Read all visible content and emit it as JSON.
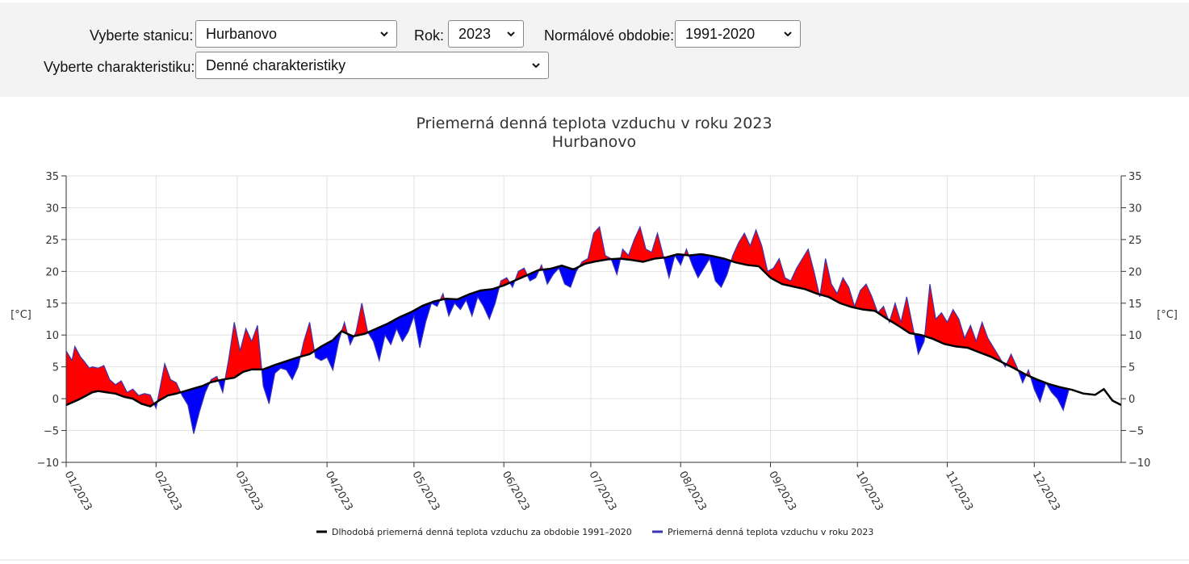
{
  "form": {
    "station_label": "Vyberte stanicu:",
    "station_value": "Hurbanovo",
    "year_label": "Rok:",
    "year_value": "2023",
    "normal_label": "Normálové obdobie:",
    "normal_value": "1991-2020",
    "char_label": "Vyberte charakteristiku:",
    "char_value": "Denné charakteristiky"
  },
  "colors": {
    "above": "#ff0000",
    "below": "#0000ff",
    "normal_line": "#000000",
    "year_line": "#3a35b0"
  },
  "chart_data": {
    "type": "area",
    "title": "Priemerná denná teplota vzduchu v roku 2023",
    "subtitle": "Hurbanovo",
    "ylabel": "[°C]",
    "ylim": [
      -10,
      35
    ],
    "yticks": [
      35,
      30,
      25,
      20,
      15,
      10,
      5,
      0,
      -5,
      -10
    ],
    "xlim": [
      "2023-01-01",
      "2023-12-31"
    ],
    "x_ticks": [
      "01/2023",
      "02/2023",
      "03/2023",
      "04/2023",
      "05/2023",
      "06/2023",
      "07/2023",
      "08/2023",
      "09/2023",
      "10/2023",
      "11/2023",
      "12/2023"
    ],
    "grid": true,
    "legend_position": "bottom",
    "series": [
      {
        "name": "Dlhodobá priemerná denná teplota vzduchu za obdobie 1991–2020",
        "points": [
          [
            "2023-01-01",
            -1.0
          ],
          [
            "2023-01-05",
            -0.2
          ],
          [
            "2023-01-08",
            0.5
          ],
          [
            "2023-01-10",
            1.0
          ],
          [
            "2023-01-12",
            1.2
          ],
          [
            "2023-01-15",
            1.0
          ],
          [
            "2023-01-18",
            0.8
          ],
          [
            "2023-01-21",
            0.3
          ],
          [
            "2023-01-24",
            0.0
          ],
          [
            "2023-01-27",
            -0.8
          ],
          [
            "2023-01-30",
            -1.2
          ],
          [
            "2023-02-02",
            -0.3
          ],
          [
            "2023-02-05",
            0.5
          ],
          [
            "2023-02-08",
            0.8
          ],
          [
            "2023-02-11",
            1.2
          ],
          [
            "2023-02-14",
            1.6
          ],
          [
            "2023-02-17",
            2.0
          ],
          [
            "2023-02-20",
            2.6
          ],
          [
            "2023-02-24",
            3.0
          ],
          [
            "2023-02-28",
            3.3
          ],
          [
            "2023-03-03",
            4.2
          ],
          [
            "2023-03-06",
            4.6
          ],
          [
            "2023-03-10",
            4.6
          ],
          [
            "2023-03-14",
            5.3
          ],
          [
            "2023-03-18",
            5.9
          ],
          [
            "2023-03-22",
            6.5
          ],
          [
            "2023-03-26",
            7.0
          ],
          [
            "2023-03-30",
            8.2
          ],
          [
            "2023-04-03",
            9.2
          ],
          [
            "2023-04-06",
            10.6
          ],
          [
            "2023-04-10",
            9.8
          ],
          [
            "2023-04-14",
            10.2
          ],
          [
            "2023-04-18",
            11.0
          ],
          [
            "2023-04-22",
            11.8
          ],
          [
            "2023-04-26",
            12.8
          ],
          [
            "2023-04-30",
            13.6
          ],
          [
            "2023-05-04",
            14.6
          ],
          [
            "2023-05-08",
            15.3
          ],
          [
            "2023-05-12",
            15.7
          ],
          [
            "2023-05-16",
            15.6
          ],
          [
            "2023-05-20",
            16.4
          ],
          [
            "2023-05-24",
            17.0
          ],
          [
            "2023-05-28",
            17.2
          ],
          [
            "2023-06-01",
            17.8
          ],
          [
            "2023-06-05",
            18.6
          ],
          [
            "2023-06-09",
            19.4
          ],
          [
            "2023-06-13",
            20.2
          ],
          [
            "2023-06-17",
            20.4
          ],
          [
            "2023-06-21",
            20.9
          ],
          [
            "2023-06-25",
            20.3
          ],
          [
            "2023-06-29",
            21.2
          ],
          [
            "2023-07-03",
            21.6
          ],
          [
            "2023-07-07",
            21.9
          ],
          [
            "2023-07-11",
            22.0
          ],
          [
            "2023-07-15",
            21.8
          ],
          [
            "2023-07-19",
            21.5
          ],
          [
            "2023-07-23",
            22.0
          ],
          [
            "2023-07-27",
            22.2
          ],
          [
            "2023-07-31",
            22.7
          ],
          [
            "2023-08-04",
            22.5
          ],
          [
            "2023-08-08",
            22.7
          ],
          [
            "2023-08-12",
            22.4
          ],
          [
            "2023-08-16",
            22.0
          ],
          [
            "2023-08-20",
            21.4
          ],
          [
            "2023-08-24",
            21.0
          ],
          [
            "2023-08-28",
            20.8
          ],
          [
            "2023-09-01",
            19.0
          ],
          [
            "2023-09-05",
            18.0
          ],
          [
            "2023-09-09",
            17.6
          ],
          [
            "2023-09-13",
            17.2
          ],
          [
            "2023-09-17",
            16.5
          ],
          [
            "2023-09-21",
            16.0
          ],
          [
            "2023-09-25",
            15.0
          ],
          [
            "2023-09-29",
            14.4
          ],
          [
            "2023-10-03",
            14.0
          ],
          [
            "2023-10-07",
            13.8
          ],
          [
            "2023-10-11",
            12.6
          ],
          [
            "2023-10-15",
            11.5
          ],
          [
            "2023-10-19",
            10.3
          ],
          [
            "2023-10-23",
            10.0
          ],
          [
            "2023-10-27",
            9.4
          ],
          [
            "2023-10-31",
            8.6
          ],
          [
            "2023-11-04",
            8.2
          ],
          [
            "2023-11-08",
            8.0
          ],
          [
            "2023-11-12",
            7.3
          ],
          [
            "2023-11-16",
            6.6
          ],
          [
            "2023-11-20",
            5.7
          ],
          [
            "2023-11-24",
            4.8
          ],
          [
            "2023-11-28",
            3.8
          ],
          [
            "2023-12-02",
            3.0
          ],
          [
            "2023-12-06",
            2.3
          ],
          [
            "2023-12-10",
            1.8
          ],
          [
            "2023-12-14",
            1.4
          ],
          [
            "2023-12-18",
            0.8
          ],
          [
            "2023-12-22",
            0.6
          ],
          [
            "2023-12-25",
            1.5
          ],
          [
            "2023-12-28",
            -0.3
          ],
          [
            "2023-12-31",
            -1.0
          ]
        ]
      },
      {
        "name": "Priemerná denná teplota vzduchu v roku 2023",
        "points": [
          [
            "2023-01-01",
            7.5
          ],
          [
            "2023-01-03",
            6.0
          ],
          [
            "2023-01-04",
            8.2
          ],
          [
            "2023-01-06",
            6.5
          ],
          [
            "2023-01-07",
            6.0
          ],
          [
            "2023-01-09",
            4.8
          ],
          [
            "2023-01-10",
            5.0
          ],
          [
            "2023-01-12",
            4.8
          ],
          [
            "2023-01-14",
            5.2
          ],
          [
            "2023-01-16",
            3.0
          ],
          [
            "2023-01-18",
            2.2
          ],
          [
            "2023-01-20",
            2.8
          ],
          [
            "2023-01-22",
            1.0
          ],
          [
            "2023-01-24",
            1.5
          ],
          [
            "2023-01-26",
            0.5
          ],
          [
            "2023-01-28",
            0.8
          ],
          [
            "2023-01-30",
            0.6
          ],
          [
            "2023-02-01",
            -1.5
          ],
          [
            "2023-02-04",
            5.5
          ],
          [
            "2023-02-06",
            3.0
          ],
          [
            "2023-02-08",
            2.5
          ],
          [
            "2023-02-10",
            0.5
          ],
          [
            "2023-02-12",
            -1.0
          ],
          [
            "2023-02-14",
            -5.5
          ],
          [
            "2023-02-16",
            -2.0
          ],
          [
            "2023-02-18",
            1.0
          ],
          [
            "2023-02-20",
            3.0
          ],
          [
            "2023-02-22",
            3.5
          ],
          [
            "2023-02-24",
            1.0
          ],
          [
            "2023-02-26",
            6.0
          ],
          [
            "2023-02-28",
            12.0
          ],
          [
            "2023-03-02",
            7.5
          ],
          [
            "2023-03-04",
            11.0
          ],
          [
            "2023-03-06",
            9.0
          ],
          [
            "2023-03-08",
            11.5
          ],
          [
            "2023-03-10",
            2.0
          ],
          [
            "2023-03-12",
            -0.8
          ],
          [
            "2023-03-14",
            4.0
          ],
          [
            "2023-03-16",
            4.8
          ],
          [
            "2023-03-18",
            4.5
          ],
          [
            "2023-03-20",
            3.0
          ],
          [
            "2023-03-22",
            5.0
          ],
          [
            "2023-03-24",
            9.0
          ],
          [
            "2023-03-26",
            12.0
          ],
          [
            "2023-03-28",
            6.5
          ],
          [
            "2023-03-30",
            6.0
          ],
          [
            "2023-04-01",
            6.5
          ],
          [
            "2023-04-03",
            4.5
          ],
          [
            "2023-04-05",
            9.0
          ],
          [
            "2023-04-07",
            12.0
          ],
          [
            "2023-04-09",
            8.5
          ],
          [
            "2023-04-11",
            10.5
          ],
          [
            "2023-04-13",
            15.0
          ],
          [
            "2023-04-15",
            10.5
          ],
          [
            "2023-04-17",
            9.0
          ],
          [
            "2023-04-19",
            6.0
          ],
          [
            "2023-04-21",
            10.0
          ],
          [
            "2023-04-23",
            8.5
          ],
          [
            "2023-04-25",
            11.0
          ],
          [
            "2023-04-27",
            9.0
          ],
          [
            "2023-04-29",
            10.5
          ],
          [
            "2023-05-01",
            13.0
          ],
          [
            "2023-05-03",
            8.0
          ],
          [
            "2023-05-05",
            12.0
          ],
          [
            "2023-05-07",
            15.0
          ],
          [
            "2023-05-09",
            14.5
          ],
          [
            "2023-05-11",
            16.5
          ],
          [
            "2023-05-13",
            13.0
          ],
          [
            "2023-05-15",
            15.0
          ],
          [
            "2023-05-17",
            14.0
          ],
          [
            "2023-05-19",
            15.5
          ],
          [
            "2023-05-21",
            13.0
          ],
          [
            "2023-05-23",
            16.0
          ],
          [
            "2023-05-25",
            14.5
          ],
          [
            "2023-05-27",
            12.5
          ],
          [
            "2023-05-29",
            15.0
          ],
          [
            "2023-05-31",
            18.5
          ],
          [
            "2023-06-02",
            19.0
          ],
          [
            "2023-06-04",
            17.5
          ],
          [
            "2023-06-06",
            20.0
          ],
          [
            "2023-06-08",
            20.5
          ],
          [
            "2023-06-10",
            18.5
          ],
          [
            "2023-06-12",
            19.0
          ],
          [
            "2023-06-14",
            21.0
          ],
          [
            "2023-06-16",
            18.0
          ],
          [
            "2023-06-18",
            19.5
          ],
          [
            "2023-06-20",
            20.5
          ],
          [
            "2023-06-22",
            18.0
          ],
          [
            "2023-06-24",
            17.5
          ],
          [
            "2023-06-26",
            20.0
          ],
          [
            "2023-06-28",
            21.5
          ],
          [
            "2023-06-30",
            22.0
          ],
          [
            "2023-07-02",
            26.0
          ],
          [
            "2023-07-04",
            27.0
          ],
          [
            "2023-07-06",
            22.5
          ],
          [
            "2023-07-08",
            22.0
          ],
          [
            "2023-07-10",
            19.5
          ],
          [
            "2023-07-12",
            23.5
          ],
          [
            "2023-07-14",
            22.5
          ],
          [
            "2023-07-16",
            25.0
          ],
          [
            "2023-07-18",
            27.0
          ],
          [
            "2023-07-20",
            23.5
          ],
          [
            "2023-07-22",
            23.0
          ],
          [
            "2023-07-24",
            26.0
          ],
          [
            "2023-07-26",
            22.5
          ],
          [
            "2023-07-28",
            19.0
          ],
          [
            "2023-07-30",
            22.5
          ],
          [
            "2023-08-01",
            21.0
          ],
          [
            "2023-08-03",
            23.5
          ],
          [
            "2023-08-05",
            21.0
          ],
          [
            "2023-08-07",
            19.0
          ],
          [
            "2023-08-09",
            20.5
          ],
          [
            "2023-08-11",
            22.0
          ],
          [
            "2023-08-13",
            18.5
          ],
          [
            "2023-08-15",
            17.5
          ],
          [
            "2023-08-17",
            19.5
          ],
          [
            "2023-08-19",
            22.5
          ],
          [
            "2023-08-21",
            24.5
          ],
          [
            "2023-08-23",
            26.0
          ],
          [
            "2023-08-25",
            24.0
          ],
          [
            "2023-08-27",
            26.5
          ],
          [
            "2023-08-29",
            24.0
          ],
          [
            "2023-08-31",
            20.0
          ],
          [
            "2023-09-02",
            20.5
          ],
          [
            "2023-09-04",
            22.0
          ],
          [
            "2023-09-06",
            19.0
          ],
          [
            "2023-09-08",
            18.5
          ],
          [
            "2023-09-10",
            20.5
          ],
          [
            "2023-09-12",
            22.0
          ],
          [
            "2023-09-14",
            23.5
          ],
          [
            "2023-09-16",
            20.0
          ],
          [
            "2023-09-18",
            16.0
          ],
          [
            "2023-09-20",
            22.0
          ],
          [
            "2023-09-22",
            18.0
          ],
          [
            "2023-09-24",
            16.5
          ],
          [
            "2023-09-26",
            19.0
          ],
          [
            "2023-09-28",
            17.5
          ],
          [
            "2023-09-30",
            14.5
          ],
          [
            "2023-10-02",
            17.0
          ],
          [
            "2023-10-04",
            18.0
          ],
          [
            "2023-10-06",
            16.0
          ],
          [
            "2023-10-08",
            13.5
          ],
          [
            "2023-10-10",
            14.5
          ],
          [
            "2023-10-12",
            12.0
          ],
          [
            "2023-10-14",
            15.0
          ],
          [
            "2023-10-16",
            12.0
          ],
          [
            "2023-10-18",
            16.0
          ],
          [
            "2023-10-20",
            11.5
          ],
          [
            "2023-10-22",
            7.0
          ],
          [
            "2023-10-24",
            9.0
          ],
          [
            "2023-10-26",
            18.0
          ],
          [
            "2023-10-28",
            12.5
          ],
          [
            "2023-10-30",
            13.5
          ],
          [
            "2023-11-01",
            12.0
          ],
          [
            "2023-11-03",
            14.0
          ],
          [
            "2023-11-05",
            12.5
          ],
          [
            "2023-11-07",
            9.5
          ],
          [
            "2023-11-09",
            11.5
          ],
          [
            "2023-11-11",
            9.0
          ],
          [
            "2023-11-13",
            12.0
          ],
          [
            "2023-11-15",
            9.5
          ],
          [
            "2023-11-17",
            8.0
          ],
          [
            "2023-11-19",
            6.5
          ],
          [
            "2023-11-21",
            5.0
          ],
          [
            "2023-11-23",
            7.0
          ],
          [
            "2023-11-25",
            5.0
          ],
          [
            "2023-11-27",
            2.5
          ],
          [
            "2023-11-29",
            4.5
          ],
          [
            "2023-12-01",
            1.5
          ],
          [
            "2023-12-03",
            -0.5
          ],
          [
            "2023-12-05",
            2.5
          ],
          [
            "2023-12-07",
            1.0
          ],
          [
            "2023-12-09",
            0.0
          ],
          [
            "2023-12-11",
            -1.8
          ],
          [
            "2023-12-13",
            1.5
          ]
        ]
      }
    ]
  }
}
